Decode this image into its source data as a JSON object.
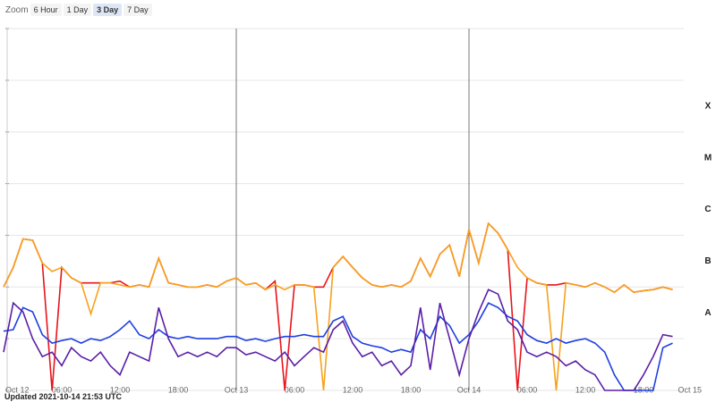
{
  "ui": {
    "zoom_label": "Zoom",
    "zoom_buttons": [
      "6 Hour",
      "1 Day",
      "3 Day",
      "7 Day"
    ],
    "selected_zoom": 2,
    "updated": "Updated 2021-10-14 21:53 UTC"
  },
  "chart_data": {
    "type": "line",
    "log_y": true,
    "xlim": [
      "2021-10-12 00:00",
      "2021-10-15 00:00"
    ],
    "xticks": [
      {
        "value": "2021-10-12 00:00",
        "label": "Oct 12"
      },
      {
        "value": "2021-10-12 06:00",
        "label": "06:00"
      },
      {
        "value": "2021-10-12 12:00",
        "label": "12:00"
      },
      {
        "value": "2021-10-12 18:00",
        "label": "18:00"
      },
      {
        "value": "2021-10-13 00:00",
        "label": "Oct 13"
      },
      {
        "value": "2021-10-13 06:00",
        "label": "06:00"
      },
      {
        "value": "2021-10-13 12:00",
        "label": "12:00"
      },
      {
        "value": "2021-10-13 18:00",
        "label": "18:00"
      },
      {
        "value": "2021-10-14 00:00",
        "label": "Oct 14"
      },
      {
        "value": "2021-10-14 06:00",
        "label": "06:00"
      },
      {
        "value": "2021-10-14 12:00",
        "label": "12:00"
      },
      {
        "value": "2021-10-14 18:00",
        "label": "18:00"
      },
      {
        "value": "2021-10-15 00:00",
        "label": "Oct 15"
      }
    ],
    "ylim": [
      1e-09,
      0.01
    ],
    "yticks": [
      1e-09,
      1e-08,
      1e-07,
      1e-06,
      1e-05,
      0.0001,
      0.001,
      0.01
    ],
    "class_labels": [
      {
        "label": "A",
        "value": 1e-08
      },
      {
        "label": "B",
        "value": 1e-07
      },
      {
        "label": "C",
        "value": 1e-06
      },
      {
        "label": "M",
        "value": 1e-05
      },
      {
        "label": "X",
        "value": 0.0001
      }
    ],
    "x": [
      "2021-10-12 00:00",
      "2021-10-12 01:00",
      "2021-10-12 02:00",
      "2021-10-12 03:00",
      "2021-10-12 04:00",
      "2021-10-12 05:00",
      "2021-10-12 06:00",
      "2021-10-12 07:00",
      "2021-10-12 08:00",
      "2021-10-12 09:00",
      "2021-10-12 10:00",
      "2021-10-12 11:00",
      "2021-10-12 12:00",
      "2021-10-12 13:00",
      "2021-10-12 14:00",
      "2021-10-12 15:00",
      "2021-10-12 16:00",
      "2021-10-12 17:00",
      "2021-10-12 18:00",
      "2021-10-12 19:00",
      "2021-10-12 20:00",
      "2021-10-12 21:00",
      "2021-10-12 22:00",
      "2021-10-12 23:00",
      "2021-10-13 00:00",
      "2021-10-13 01:00",
      "2021-10-13 02:00",
      "2021-10-13 03:00",
      "2021-10-13 04:00",
      "2021-10-13 05:00",
      "2021-10-13 06:00",
      "2021-10-13 07:00",
      "2021-10-13 08:00",
      "2021-10-13 09:00",
      "2021-10-13 10:00",
      "2021-10-13 11:00",
      "2021-10-13 12:00",
      "2021-10-13 13:00",
      "2021-10-13 14:00",
      "2021-10-13 15:00",
      "2021-10-13 16:00",
      "2021-10-13 17:00",
      "2021-10-13 18:00",
      "2021-10-13 19:00",
      "2021-10-13 20:00",
      "2021-10-13 21:00",
      "2021-10-13 22:00",
      "2021-10-13 23:00",
      "2021-10-14 00:00",
      "2021-10-14 01:00",
      "2021-10-14 02:00",
      "2021-10-14 03:00",
      "2021-10-14 04:00",
      "2021-10-14 05:00",
      "2021-10-14 06:00",
      "2021-10-14 07:00",
      "2021-10-14 08:00",
      "2021-10-14 09:00",
      "2021-10-14 10:00",
      "2021-10-14 11:00",
      "2021-10-14 12:00",
      "2021-10-14 13:00",
      "2021-10-14 14:00",
      "2021-10-14 15:00",
      "2021-10-14 16:00",
      "2021-10-14 17:00",
      "2021-10-14 18:00",
      "2021-10-14 19:00",
      "2021-10-14 20:00",
      "2021-10-14 21:00"
    ],
    "series": [
      {
        "color": "#e8141b",
        "values": [
          1e-07,
          2.4e-07,
          8.5e-07,
          8e-07,
          2.9e-07,
          1e-09,
          2.4e-07,
          1.5e-07,
          1.2e-07,
          1.2e-07,
          1.2e-07,
          1.2e-07,
          1.3e-07,
          1e-07,
          1.1e-07,
          1e-07,
          3.6e-07,
          1.2e-07,
          1.1e-07,
          1e-07,
          1e-07,
          1.1e-07,
          1e-07,
          1.3e-07,
          1.5e-07,
          1.1e-07,
          1.2e-07,
          8.9e-08,
          1.3e-07,
          1e-09,
          1.1e-07,
          1.1e-07,
          1e-07,
          1e-07,
          2.4e-07,
          3.9e-07,
          2.4e-07,
          1.5e-07,
          1.1e-07,
          1e-07,
          1.1e-07,
          1e-07,
          1.3e-07,
          3.6e-07,
          1.6e-07,
          4.3e-07,
          6.5e-07,
          1.6e-07,
          1.3e-06,
          2.9e-07,
          1.7e-06,
          1.1e-06,
          5.3e-07,
          1e-09,
          1.5e-07,
          1.2e-07,
          1.1e-07,
          1.1e-07,
          1.2e-07,
          1.1e-07,
          1e-07,
          1.2e-07,
          1e-07,
          7.9e-08,
          1.1e-07,
          7.9e-08,
          8.5e-08,
          8.9e-08,
          1e-07,
          8.9e-08
        ]
      },
      {
        "color": "#f7a21b",
        "values": [
          1e-07,
          2.4e-07,
          8.5e-07,
          8e-07,
          2.9e-07,
          2e-07,
          2.4e-07,
          1.5e-07,
          1.2e-07,
          3e-08,
          1.2e-07,
          1.2e-07,
          1.1e-07,
          1e-07,
          1.1e-07,
          1e-07,
          3.6e-07,
          1.2e-07,
          1.1e-07,
          1e-07,
          1e-07,
          1.1e-07,
          1e-07,
          1.3e-07,
          1.5e-07,
          1.1e-07,
          1.2e-07,
          8.9e-08,
          1.1e-07,
          8.9e-08,
          1.1e-07,
          1.1e-07,
          1e-07,
          1e-09,
          2.4e-07,
          3.9e-07,
          2.4e-07,
          1.5e-07,
          1.1e-07,
          1e-07,
          1.1e-07,
          1e-07,
          1.3e-07,
          3.6e-07,
          1.6e-07,
          4.3e-07,
          6.5e-07,
          1.6e-07,
          1.3e-06,
          2.9e-07,
          1.7e-06,
          1.1e-06,
          5.3e-07,
          2.4e-07,
          1.5e-07,
          1.2e-07,
          1.1e-07,
          1e-09,
          1.2e-07,
          1.1e-07,
          1e-07,
          1.2e-07,
          1e-07,
          7.9e-08,
          1.1e-07,
          7.9e-08,
          8.5e-08,
          8.9e-08,
          1e-07,
          8.9e-08
        ]
      },
      {
        "color": "#1f3fe0",
        "values": [
          1.4e-08,
          1.5e-08,
          4e-08,
          3.3e-08,
          1.2e-08,
          8.2e-09,
          9.2e-09,
          1e-08,
          8.2e-09,
          1e-08,
          9.2e-09,
          1.1e-08,
          1.5e-08,
          2.2e-08,
          1.2e-08,
          1e-08,
          1.5e-08,
          1.1e-08,
          1e-08,
          1.1e-08,
          1e-08,
          1e-08,
          1e-08,
          1.1e-08,
          1.1e-08,
          9.2e-09,
          1e-08,
          8.9e-09,
          1e-08,
          1.1e-08,
          1.1e-08,
          1.2e-08,
          1.1e-08,
          1.1e-08,
          2.2e-08,
          2.7e-08,
          1.1e-08,
          8.2e-09,
          7.3e-09,
          6.7e-09,
          5.5e-09,
          6.2e-09,
          5.5e-09,
          1.5e-08,
          1e-08,
          2.7e-08,
          1.8e-08,
          8.2e-09,
          1.2e-08,
          2.2e-08,
          4.9e-08,
          4e-08,
          2.7e-08,
          2.2e-08,
          1.2e-08,
          9.2e-09,
          8.2e-09,
          1e-08,
          8.2e-09,
          9.2e-09,
          1e-08,
          8.2e-09,
          5.5e-09,
          2e-09,
          1e-09,
          1e-09,
          1e-09,
          1e-09,
          6.7e-09,
          8.2e-09
        ]
      },
      {
        "color": "#5a1ea6",
        "values": [
          5.5e-09,
          4.9e-08,
          3.3e-08,
          1e-08,
          4.5e-09,
          5.5e-09,
          3e-09,
          6.7e-09,
          4.5e-09,
          3.7e-09,
          5.5e-09,
          3e-09,
          2e-09,
          5.5e-09,
          4.5e-09,
          3.7e-09,
          4e-08,
          1e-08,
          4.5e-09,
          5.5e-09,
          4.5e-09,
          5.5e-09,
          4.5e-09,
          6.7e-09,
          6.7e-09,
          4.9e-09,
          5.5e-09,
          4.5e-09,
          3.7e-09,
          5.5e-09,
          3e-09,
          4.5e-09,
          6.7e-09,
          5.5e-09,
          1.5e-08,
          2.2e-08,
          8.2e-09,
          4.5e-09,
          5.5e-09,
          3e-09,
          3.7e-09,
          2e-09,
          3e-09,
          4e-08,
          2.5e-09,
          4.9e-08,
          1e-08,
          2e-09,
          1e-08,
          3.3e-08,
          8.9e-08,
          7.3e-08,
          2.2e-08,
          1.5e-08,
          5.5e-09,
          4.5e-09,
          5.5e-09,
          4.5e-09,
          3e-09,
          3.7e-09,
          2.5e-09,
          2e-09,
          1e-09,
          1e-09,
          1e-09,
          1e-09,
          2e-09,
          4.5e-09,
          1.2e-08,
          1.1e-08
        ]
      }
    ]
  }
}
